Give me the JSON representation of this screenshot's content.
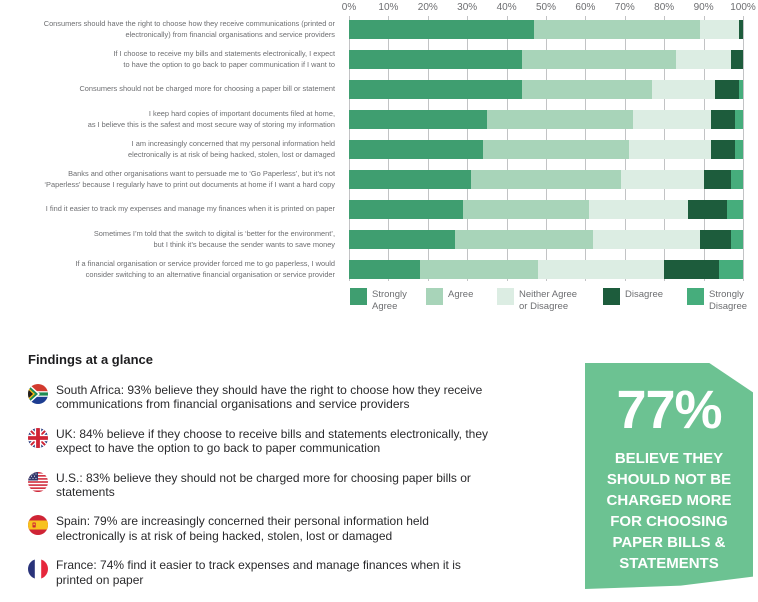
{
  "chart_data": {
    "type": "bar",
    "variant": "horizontal-stacked",
    "title": "",
    "x_axis": {
      "ticks": [
        "0%",
        "10%",
        "20%",
        "30%",
        "40%",
        "50%",
        "60%",
        "70%",
        "80%",
        "90%",
        "100%"
      ],
      "min": 0,
      "max": 100,
      "unit": "%"
    },
    "grid": true,
    "gridline_color": "#c2c3c5",
    "label_color": "#6d6e71",
    "legend_position": "bottom",
    "series": [
      {
        "name": "Strongly Agree",
        "color": "#3f9e70"
      },
      {
        "name": "Agree",
        "color": "#a8d4b9"
      },
      {
        "name": "Neither Agree or Disagree",
        "color": "#dcede3"
      },
      {
        "name": "Disagree",
        "color": "#1d5c3c"
      },
      {
        "name": "Strongly Disagree",
        "color": "#46ad7c"
      }
    ],
    "legend_labels": [
      "Strongly\nAgree",
      "Agree",
      "Neither Agree\nor Disagree",
      "Disagree",
      "Strongly\nDisagree"
    ],
    "rows": [
      {
        "label": "Consumers should have the right to choose how they receive communications (printed or\nelectronically) from financial organisations and service providers",
        "values": [
          47,
          42,
          10,
          1,
          0
        ]
      },
      {
        "label": "If I choose to receive my bills and statements electronically, I expect\nto have the option to go back to paper communication if I want to",
        "values": [
          44,
          39,
          14,
          3,
          0
        ]
      },
      {
        "label": "Consumers should not be charged more for choosing a paper bill or statement",
        "values": [
          44,
          33,
          16,
          6,
          1
        ]
      },
      {
        "label": "I keep hard copies of important documents filed at home,\nas I believe this is the safest and most secure way of storing my information",
        "values": [
          35,
          37,
          20,
          6,
          2
        ]
      },
      {
        "label": "I am increasingly concerned that my personal information held\nelectronically is at risk of being hacked, stolen, lost or damaged",
        "values": [
          34,
          37,
          21,
          6,
          2
        ]
      },
      {
        "label": "Banks and other organisations want to persuade me to ‘Go Paperless’, but it’s not\n‘Paperless’ because I regularly have to print out documents at home if I want a hard copy",
        "values": [
          31,
          38,
          21,
          7,
          3
        ]
      },
      {
        "label": "I find it easier to track my expenses and manage my finances when it is printed on paper",
        "values": [
          29,
          32,
          25,
          10,
          4
        ]
      },
      {
        "label": "Sometimes I’m told that the switch to digital is ‘better for the environment’,\nbut I think it’s because the sender wants to save money",
        "values": [
          27,
          35,
          27,
          8,
          3
        ]
      },
      {
        "label": "If a financial organisation or service provider forced me to go paperless, I would\nconsider switching to an alternative financial organisation or service provider",
        "values": [
          18,
          30,
          32,
          14,
          6
        ]
      }
    ]
  },
  "findings": {
    "heading": "Findings at a glance",
    "items": [
      {
        "country": "South Africa",
        "flag_icon": "flag-south-africa",
        "text": "South Africa: 93% believe they should have the right to choose how they receive\ncommunications from financial organisations and service providers"
      },
      {
        "country": "UK",
        "flag_icon": "flag-uk",
        "text": "UK: 84% believe if they choose to receive bills and statements electronically, they\nexpect to have the option to go back to paper communication"
      },
      {
        "country": "U.S.",
        "flag_icon": "flag-us",
        "text": "U.S.: 83% believe they should not be charged more for choosing paper bills or\nstatements"
      },
      {
        "country": "Spain",
        "flag_icon": "flag-spain",
        "text": "Spain: 79% are increasingly concerned their personal information held\nelectronically is at risk of being hacked, stolen, lost or damaged"
      },
      {
        "country": "France",
        "flag_icon": "flag-france",
        "text": "France: 74% find it easier to track expenses and manage finances when it is\nprinted on paper"
      }
    ]
  },
  "callout": {
    "stat": "77%",
    "caption": "BELIEVE THEY\nSHOULD NOT BE\nCHARGED MORE\nFOR CHOOSING\nPAPER BILLS &\nSTATEMENTS",
    "background": "#6cc292"
  }
}
